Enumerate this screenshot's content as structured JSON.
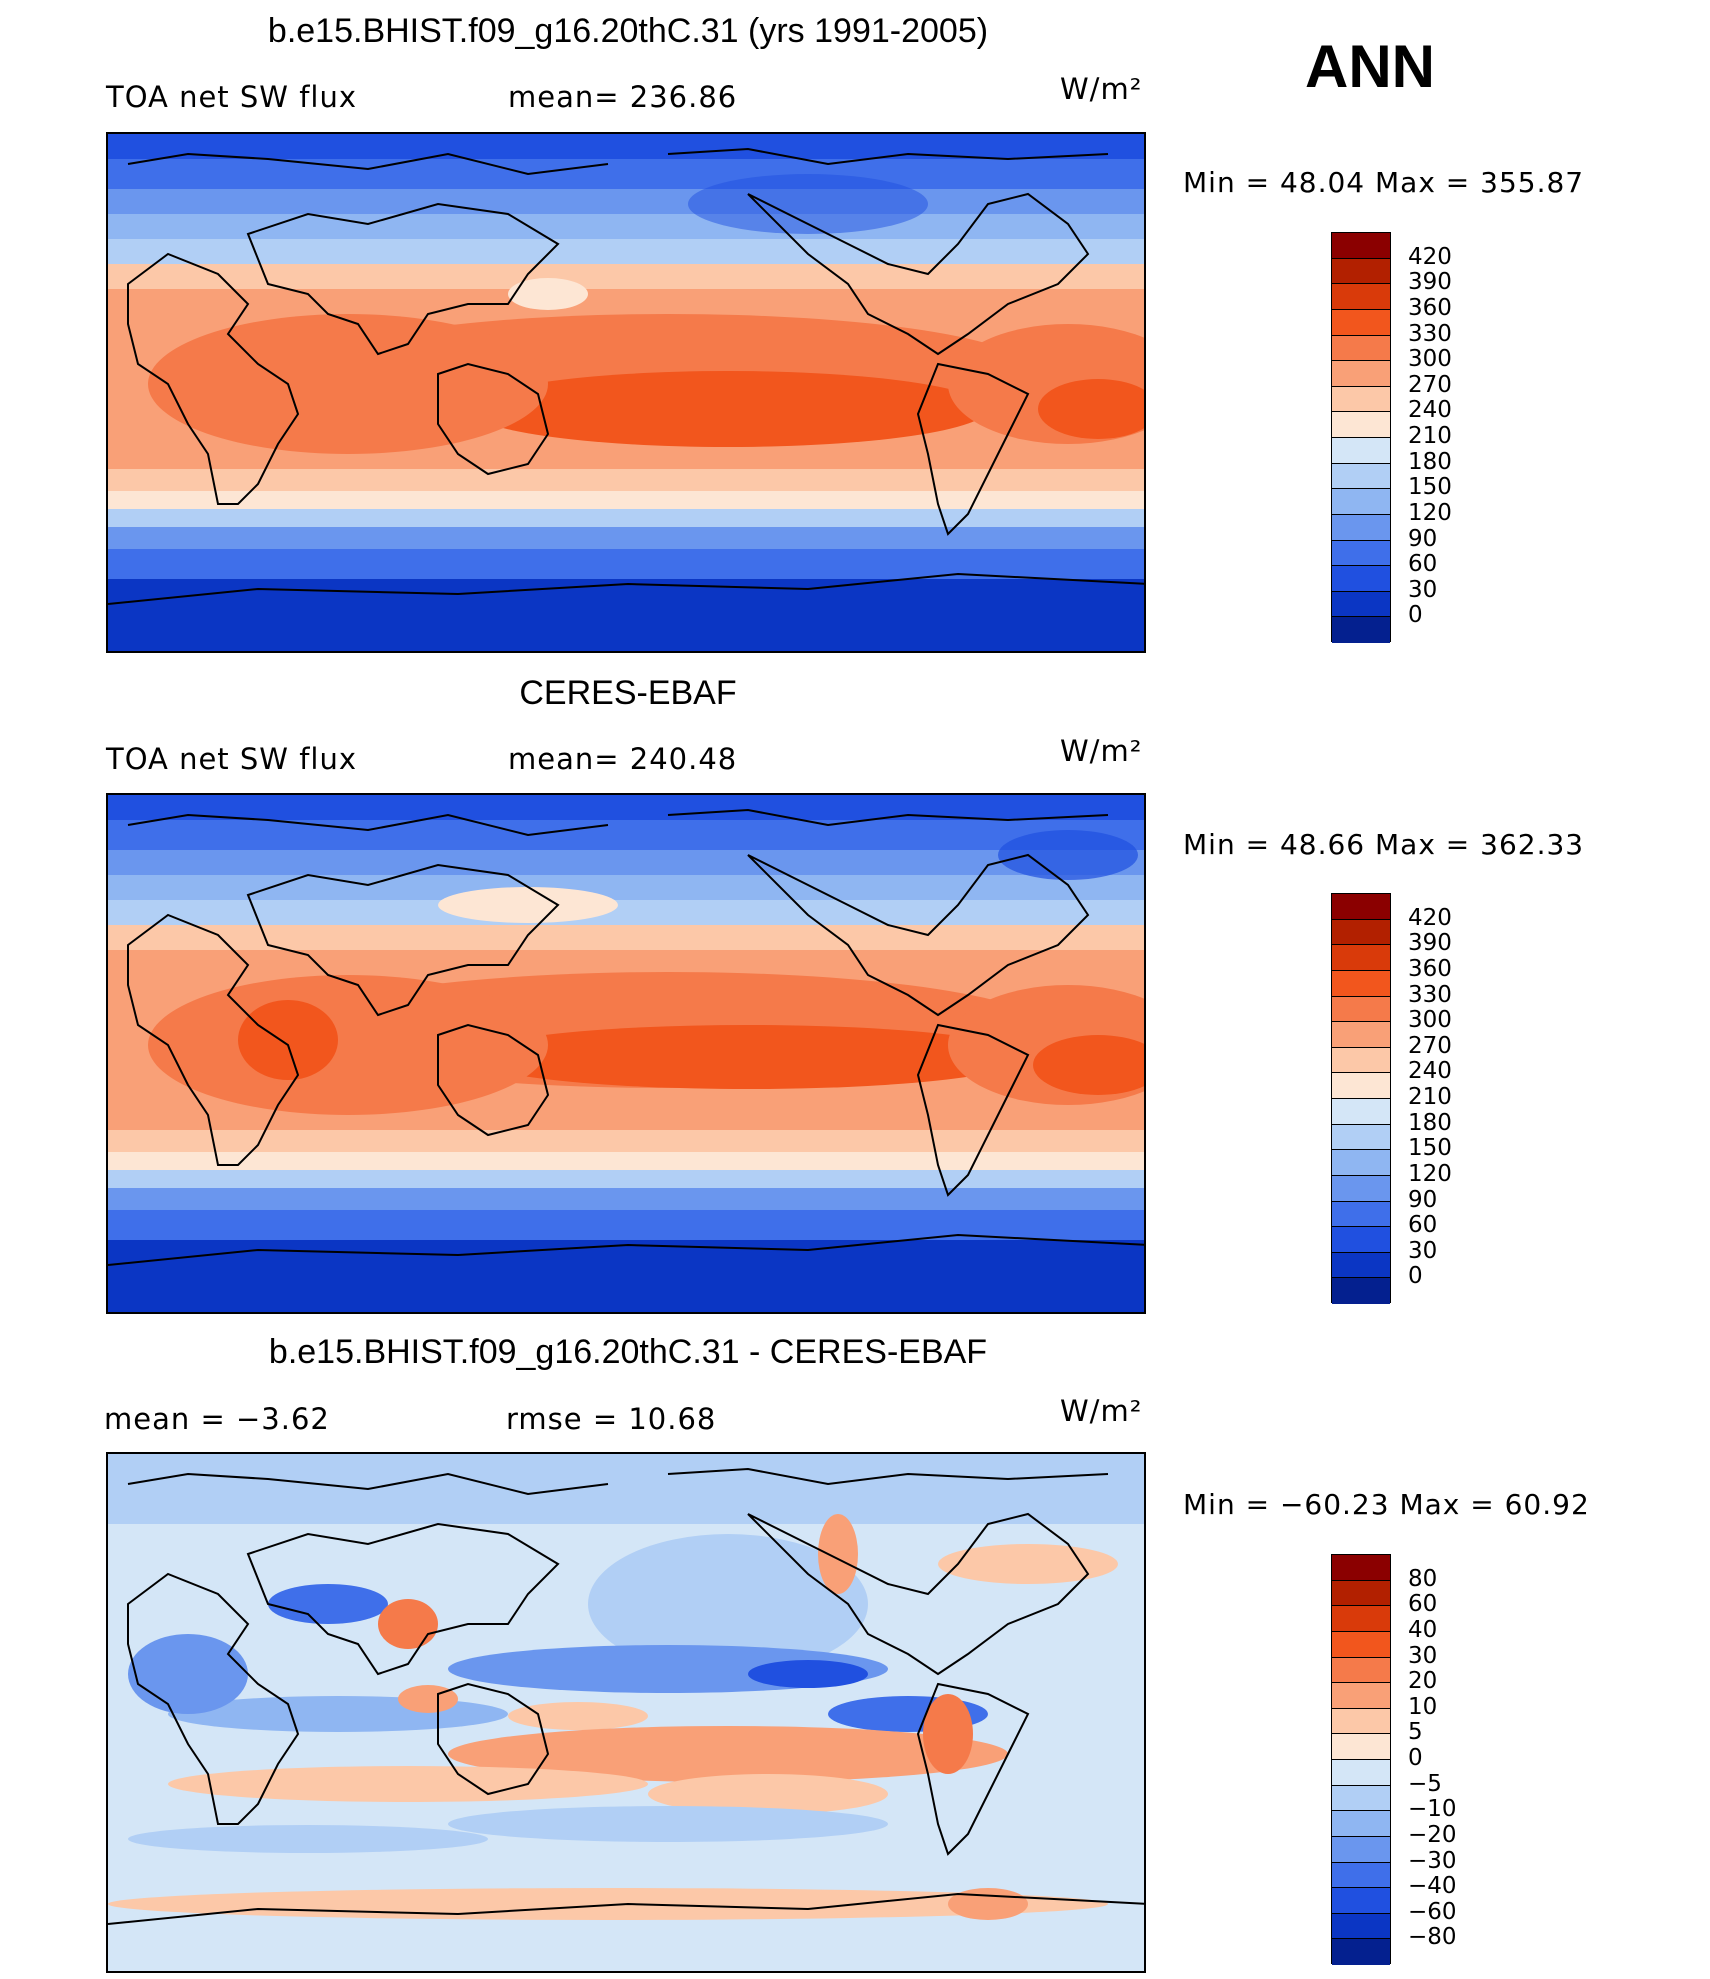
{
  "header": {
    "season": "ANN"
  },
  "panels": [
    {
      "title": "b.e15.BHIST.f09_g16.20thC.31 (yrs 1991-2005)",
      "left_label": "TOA net SW flux",
      "center_label": "mean= 236.86",
      "units": "W/m²",
      "minmax": "Min =   48.04 Max = 355.87",
      "colorbar": {
        "labels": [
          "420",
          "390",
          "360",
          "330",
          "300",
          "270",
          "240",
          "210",
          "180",
          "150",
          "120",
          "90",
          "60",
          "30",
          "0"
        ],
        "colors": [
          "#8b0000",
          "#b22000",
          "#d93a0a",
          "#f2561d",
          "#f57a4a",
          "#f9a077",
          "#fcc8a8",
          "#fde6d4",
          "#d4e6f7",
          "#b1cff5",
          "#8fb6f2",
          "#6a96ee",
          "#3f6fea",
          "#2050e0",
          "#0b36c4",
          "#04208f"
        ]
      }
    },
    {
      "title": "CERES-EBAF",
      "left_label": "TOA net SW flux",
      "center_label": "mean= 240.48",
      "units": "W/m²",
      "minmax": "Min =   48.66 Max = 362.33",
      "colorbar": {
        "labels": [
          "420",
          "390",
          "360",
          "330",
          "300",
          "270",
          "240",
          "210",
          "180",
          "150",
          "120",
          "90",
          "60",
          "30",
          "0"
        ],
        "colors": [
          "#8b0000",
          "#b22000",
          "#d93a0a",
          "#f2561d",
          "#f57a4a",
          "#f9a077",
          "#fcc8a8",
          "#fde6d4",
          "#d4e6f7",
          "#b1cff5",
          "#8fb6f2",
          "#6a96ee",
          "#3f6fea",
          "#2050e0",
          "#0b36c4",
          "#04208f"
        ]
      }
    },
    {
      "title": "b.e15.BHIST.f09_g16.20thC.31 - CERES-EBAF",
      "left_label": "mean =   −3.62",
      "center_label": "rmse =   10.68",
      "units": "W/m²",
      "minmax": "Min = −60.23 Max =   60.92",
      "colorbar": {
        "labels": [
          "80",
          "60",
          "40",
          "30",
          "20",
          "10",
          "5",
          "0",
          "−5",
          "−10",
          "−20",
          "−30",
          "−40",
          "−60",
          "−80"
        ],
        "colors": [
          "#8b0000",
          "#b22000",
          "#d93a0a",
          "#f2561d",
          "#f57a4a",
          "#f9a077",
          "#fcc8a8",
          "#fde6d4",
          "#d4e6f7",
          "#b1cff5",
          "#8fb6f2",
          "#6a96ee",
          "#3f6fea",
          "#2050e0",
          "#0b36c4",
          "#04208f"
        ]
      }
    }
  ]
}
